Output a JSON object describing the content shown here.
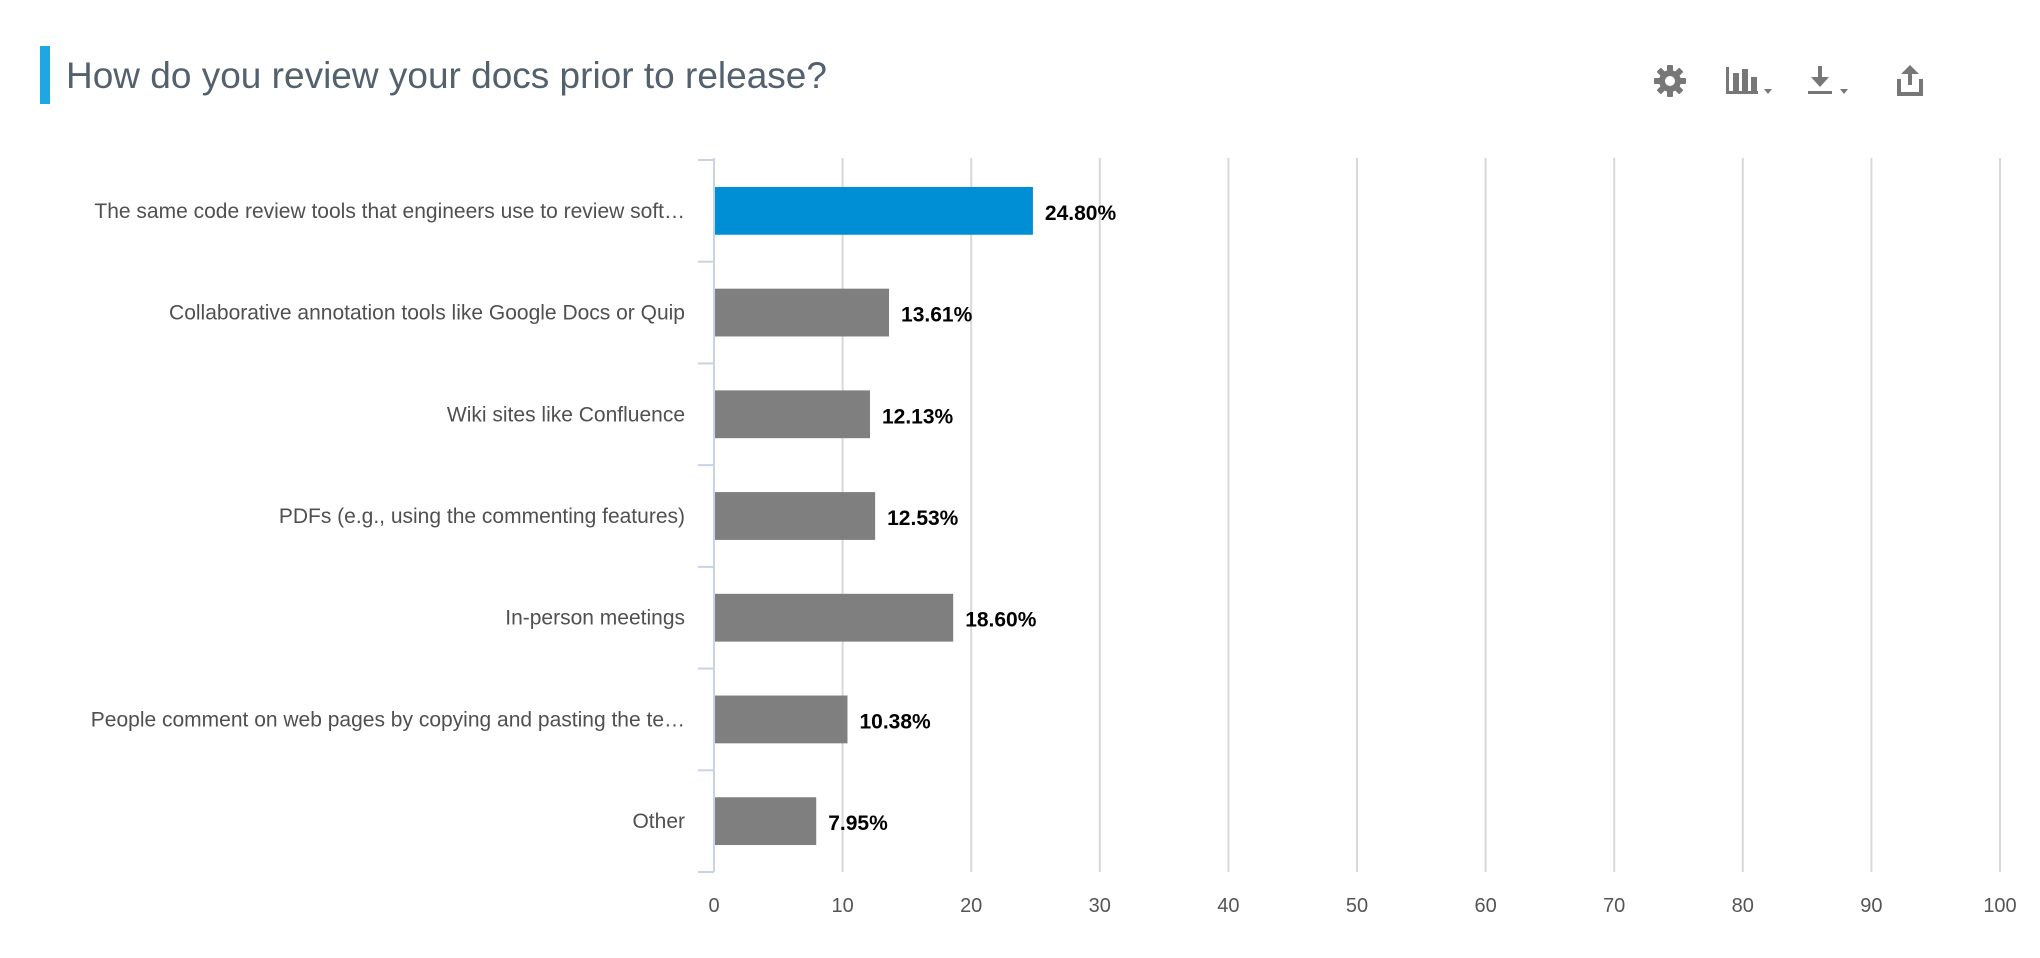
{
  "title": "How do you review your docs prior to release?",
  "toolbar": {
    "icons": [
      "gear-icon",
      "bar-chart-icon",
      "download-icon",
      "share-icon"
    ]
  },
  "colors": {
    "accent": "#1ea7e1",
    "highlight_bar": "#008fd5",
    "bar": "#7f7f7f",
    "grid": "#d8d8d8",
    "axis": "#c8d4e2"
  },
  "chart_data": {
    "type": "bar",
    "orientation": "horizontal",
    "categories": [
      "The same code review tools that engineers use to review soft…",
      "Collaborative annotation tools like Google Docs or Quip",
      "Wiki sites like Confluence",
      "PDFs (e.g., using the commenting features)",
      "In-person meetings",
      "People comment on web pages by copying and pasting the te…",
      "Other"
    ],
    "values": [
      24.8,
      13.61,
      12.13,
      12.53,
      18.6,
      10.38,
      7.95
    ],
    "value_labels": [
      "24.80%",
      "13.61%",
      "12.13%",
      "12.53%",
      "18.60%",
      "10.38%",
      "7.95%"
    ],
    "highlighted_index": 0,
    "xlim": [
      0,
      100
    ],
    "xticks": [
      0,
      10,
      20,
      30,
      40,
      50,
      60,
      70,
      80,
      90,
      100
    ],
    "grid": true,
    "legend": "none"
  }
}
